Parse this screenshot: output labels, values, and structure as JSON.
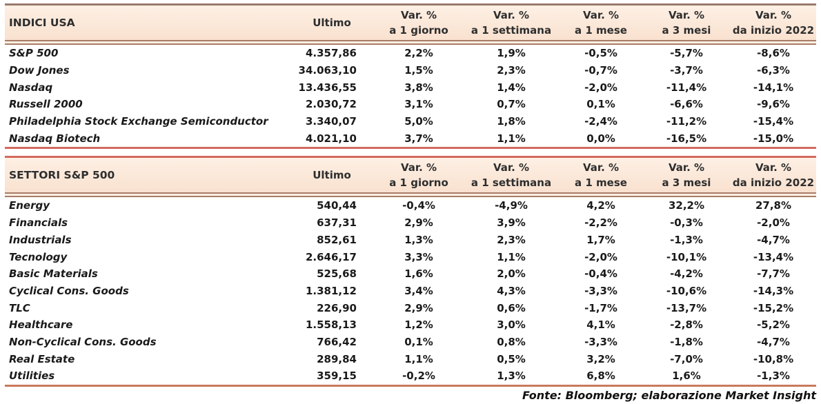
{
  "header": {
    "ultimo_label": "Ultimo",
    "var_label": "Var. %",
    "periods": [
      "a 1 giorno",
      "a 1 settimana",
      "a 1 mese",
      "a 3 mesi",
      "da inizio 2022"
    ]
  },
  "chart_data": [
    {
      "type": "table",
      "title": "INDICI USA",
      "columns": [
        "INDICI USA",
        "Ultimo",
        "Var. % a 1 giorno",
        "Var. % a 1 settimana",
        "Var. % a 1 mese",
        "Var. % a 3 mesi",
        "Var. % da inizio 2022"
      ],
      "rows": [
        {
          "label": "S&P 500",
          "ultimo": "4.357,86",
          "values": [
            "2,2%",
            "1,9%",
            "-0,5%",
            "-5,7%",
            "-8,6%"
          ]
        },
        {
          "label": "Dow Jones",
          "ultimo": "34.063,10",
          "values": [
            "1,5%",
            "2,3%",
            "-0,7%",
            "-3,7%",
            "-6,3%"
          ]
        },
        {
          "label": "Nasdaq",
          "ultimo": "13.436,55",
          "values": [
            "3,8%",
            "1,4%",
            "-2,0%",
            "-11,4%",
            "-14,1%"
          ]
        },
        {
          "label": "Russell 2000",
          "ultimo": "2.030,72",
          "values": [
            "3,1%",
            "0,7%",
            "0,1%",
            "-6,6%",
            "-9,6%"
          ]
        },
        {
          "label": "Philadelphia Stock Exchange Semiconductor",
          "ultimo": "3.340,07",
          "values": [
            "5,0%",
            "1,8%",
            "-2,4%",
            "-11,2%",
            "-15,4%"
          ]
        },
        {
          "label": "Nasdaq Biotech",
          "ultimo": "4.021,10",
          "values": [
            "3,7%",
            "1,1%",
            "0,0%",
            "-16,5%",
            "-15,0%"
          ]
        }
      ]
    },
    {
      "type": "table",
      "title": "SETTORI S&P 500",
      "columns": [
        "SETTORI S&P 500",
        "Ultimo",
        "Var. % a 1 giorno",
        "Var. % a 1 settimana",
        "Var. % a 1 mese",
        "Var. % a 3 mesi",
        "Var. % da inizio 2022"
      ],
      "rows": [
        {
          "label": "Energy",
          "ultimo": "540,44",
          "values": [
            "-0,4%",
            "-4,9%",
            "4,2%",
            "32,2%",
            "27,8%"
          ]
        },
        {
          "label": "Financials",
          "ultimo": "637,31",
          "values": [
            "2,9%",
            "3,9%",
            "-2,2%",
            "-0,3%",
            "-2,0%"
          ]
        },
        {
          "label": "Industrials",
          "ultimo": "852,61",
          "values": [
            "1,3%",
            "2,3%",
            "1,7%",
            "-1,3%",
            "-4,7%"
          ]
        },
        {
          "label": "Tecnology",
          "ultimo": "2.646,17",
          "values": [
            "3,3%",
            "1,1%",
            "-2,0%",
            "-10,1%",
            "-13,4%"
          ]
        },
        {
          "label": "Basic Materials",
          "ultimo": "525,68",
          "values": [
            "1,6%",
            "2,0%",
            "-0,4%",
            "-4,2%",
            "-7,7%"
          ]
        },
        {
          "label": "Cyclical Cons. Goods",
          "ultimo": "1.381,12",
          "values": [
            "3,4%",
            "4,3%",
            "-3,3%",
            "-10,6%",
            "-14,3%"
          ]
        },
        {
          "label": "TLC",
          "ultimo": "226,90",
          "values": [
            "2,9%",
            "0,6%",
            "-1,7%",
            "-13,7%",
            "-15,2%"
          ]
        },
        {
          "label": "Healthcare",
          "ultimo": "1.558,13",
          "values": [
            "1,2%",
            "3,0%",
            "4,1%",
            "-2,8%",
            "-5,2%"
          ]
        },
        {
          "label": "Non-Cyclical Cons. Goods",
          "ultimo": "766,42",
          "values": [
            "0,1%",
            "0,8%",
            "-3,3%",
            "-1,8%",
            "-4,7%"
          ]
        },
        {
          "label": "Real Estate",
          "ultimo": "289,84",
          "values": [
            "1,1%",
            "0,5%",
            "3,2%",
            "-7,0%",
            "-10,8%"
          ]
        },
        {
          "label": "Utilities",
          "ultimo": "359,15",
          "values": [
            "-0,2%",
            "1,3%",
            "6,8%",
            "1,6%",
            "-1,3%"
          ]
        }
      ]
    }
  ],
  "footer": {
    "source_note": "Fonte: Bloomberg; elaborazione Market Insight"
  },
  "colors": {
    "header_bg": "#fae3d2",
    "header_rule": "#a87c68",
    "table_top_rule": "#997a6e",
    "section_rule": "#d4695f",
    "bottom_rule": "#c9795c",
    "text": "#1a1a1a"
  }
}
